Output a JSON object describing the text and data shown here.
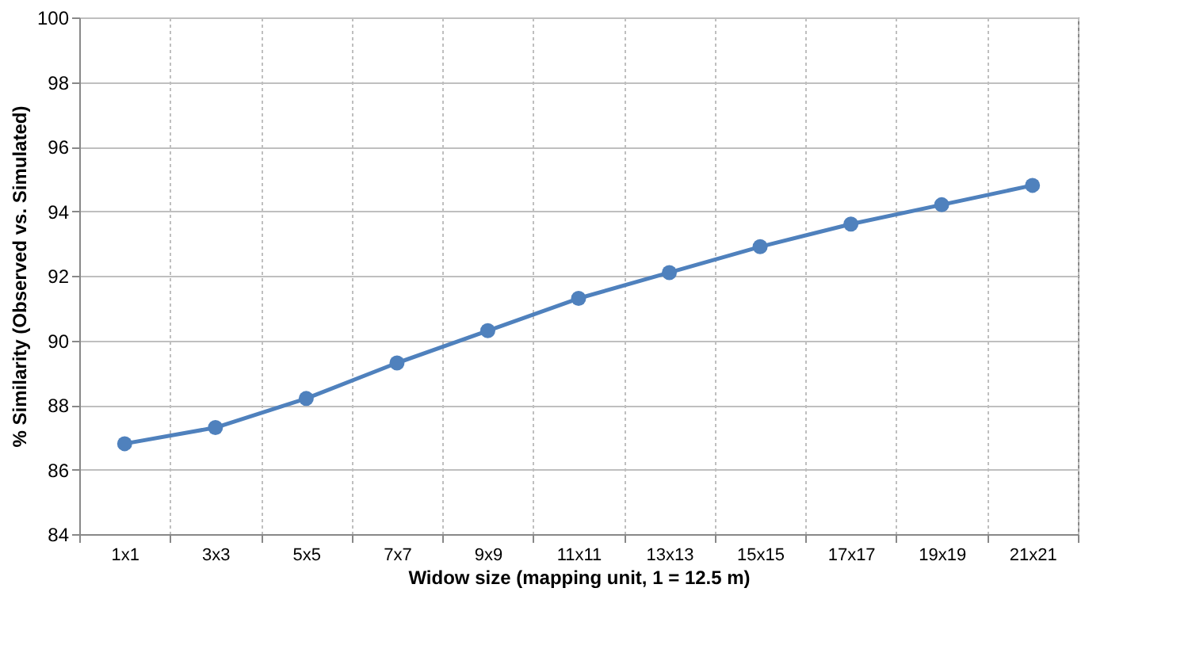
{
  "chart_data": {
    "type": "line",
    "xlabel": "Widow size (mapping unit, 1 = 12.5 m)",
    "ylabel": "% Similarity (Observed vs. Simulated)",
    "categories": [
      "1x1",
      "3x3",
      "5x5",
      "7x7",
      "9x9",
      "11x11",
      "13x13",
      "15x15",
      "17x17",
      "19x19",
      "21x21"
    ],
    "series": [
      {
        "color": "#4f81bd",
        "values": [
          86.8,
          87.3,
          88.2,
          89.3,
          90.3,
          91.3,
          92.1,
          92.9,
          93.6,
          94.2,
          94.8
        ]
      }
    ],
    "ylim": [
      84,
      100
    ],
    "yticks": [
      84,
      86,
      88,
      90,
      92,
      94,
      96,
      98,
      100
    ],
    "grid": true,
    "marker": "circle",
    "line_style": "solid"
  }
}
